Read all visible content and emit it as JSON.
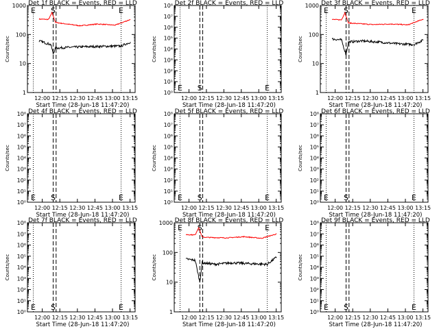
{
  "figure": {
    "xlabel": "Start Time (28-Jun-18 11:47:20)",
    "ylabel": "Counts/sec",
    "x_ticks": [
      "12:00",
      "12:15",
      "12:30",
      "12:45",
      "13:00",
      "13:15"
    ],
    "colors": {
      "events": "#000000",
      "lld": "#ff0000",
      "axes": "#000000"
    }
  },
  "chart_data": [
    {
      "type": "line",
      "title": "Det 1f BLACK = Events, RED = LLD",
      "xlabel": "Start Time (28-Jun-18 11:47:20)",
      "ylabel": "Counts/sec",
      "yscale": "log",
      "ylim": [
        1,
        1000
      ],
      "y_ticks": [
        "1",
        "10",
        "100",
        "1000"
      ],
      "x_ticks": [
        "12:00",
        "12:15",
        "12:30",
        "12:45",
        "13:00",
        "13:15"
      ],
      "markers": [
        {
          "label": "E",
          "minutes": 5
        },
        {
          "label": "S",
          "minutes": 22
        },
        {
          "label": "E",
          "minutes": 80
        }
      ],
      "series": [
        {
          "color": "#ff0000",
          "points": [
            [
              10,
              340
            ],
            [
              18,
              330
            ],
            [
              21,
              560
            ],
            [
              24,
              260
            ],
            [
              30,
              240
            ],
            [
              45,
              200
            ],
            [
              60,
              230
            ],
            [
              75,
              210
            ],
            [
              88,
              330
            ]
          ]
        },
        {
          "color": "#000000",
          "points": [
            [
              10,
              60
            ],
            [
              20,
              45
            ],
            [
              22,
              22
            ],
            [
              24,
              34
            ],
            [
              35,
              36
            ],
            [
              50,
              38
            ],
            [
              65,
              39
            ],
            [
              80,
              40
            ],
            [
              88,
              55
            ]
          ]
        }
      ]
    },
    {
      "type": "line",
      "title": "Det 2f BLACK = Events, RED = LLD",
      "xlabel": "Start Time (28-Jun-18 11:47:20)",
      "ylabel": "Counts/sec",
      "yscale": "log",
      "ylim": [
        1,
        100000000
      ],
      "y_ticks": [
        "10⁰",
        "10¹",
        "10²",
        "10³",
        "10⁴",
        "10⁵",
        "10⁶",
        "10⁷",
        "10⁸"
      ],
      "x_ticks": [
        "12:00",
        "12:15",
        "12:30",
        "12:45",
        "13:00",
        "13:15"
      ],
      "markers": [
        {
          "label": "E",
          "minutes": 5
        },
        {
          "label": "S",
          "minutes": 22
        },
        {
          "label": "E",
          "minutes": 80
        }
      ],
      "series": []
    },
    {
      "type": "line",
      "title": "Det 3f BLACK = Events, RED = LLD",
      "xlabel": "Start Time (28-Jun-18 11:47:20)",
      "ylabel": "Counts/sec",
      "yscale": "log",
      "ylim": [
        1,
        1000
      ],
      "y_ticks": [
        "1",
        "10",
        "100",
        "1000"
      ],
      "x_ticks": [
        "12:00",
        "12:15",
        "12:30",
        "12:45",
        "13:00",
        "13:15"
      ],
      "markers": [
        {
          "label": "E",
          "minutes": 5
        },
        {
          "label": "S",
          "minutes": 22
        },
        {
          "label": "E",
          "minutes": 80
        }
      ],
      "series": [
        {
          "color": "#ff0000",
          "points": [
            [
              10,
              330
            ],
            [
              18,
              320
            ],
            [
              21,
              560
            ],
            [
              24,
              250
            ],
            [
              30,
              240
            ],
            [
              45,
              220
            ],
            [
              60,
              230
            ],
            [
              75,
              215
            ],
            [
              88,
              340
            ]
          ]
        },
        {
          "color": "#000000",
          "points": [
            [
              10,
              70
            ],
            [
              18,
              65
            ],
            [
              22,
              20
            ],
            [
              24,
              55
            ],
            [
              35,
              60
            ],
            [
              50,
              55
            ],
            [
              65,
              48
            ],
            [
              80,
              45
            ],
            [
              88,
              65
            ]
          ]
        }
      ]
    },
    {
      "type": "line",
      "title": "Det 4f BLACK = Events, RED = LLD",
      "xlabel": "Start Time (28-Jun-18 11:47:20)",
      "ylabel": "Counts/sec",
      "yscale": "log",
      "ylim": [
        1,
        100000000
      ],
      "y_ticks": [
        "10⁰",
        "10¹",
        "10²",
        "10³",
        "10⁴",
        "10⁵",
        "10⁶",
        "10⁷",
        "10⁸"
      ],
      "x_ticks": [
        "12:00",
        "12:15",
        "12:30",
        "12:45",
        "13:00",
        "13:15"
      ],
      "markers": [
        {
          "label": "E",
          "minutes": 5
        },
        {
          "label": "S",
          "minutes": 22
        },
        {
          "label": "E",
          "minutes": 80
        }
      ],
      "series": []
    },
    {
      "type": "line",
      "title": "Det 5f BLACK = Events, RED = LLD",
      "xlabel": "Start Time (28-Jun-18 11:47:20)",
      "ylabel": "Counts/sec",
      "yscale": "log",
      "ylim": [
        1,
        100000000
      ],
      "y_ticks": [
        "10⁰",
        "10¹",
        "10²",
        "10³",
        "10⁴",
        "10⁵",
        "10⁶",
        "10⁷",
        "10⁸"
      ],
      "x_ticks": [
        "12:00",
        "12:15",
        "12:30",
        "12:45",
        "13:00",
        "13:15"
      ],
      "markers": [
        {
          "label": "E",
          "minutes": 5
        },
        {
          "label": "S",
          "minutes": 22
        },
        {
          "label": "E",
          "minutes": 80
        }
      ],
      "series": []
    },
    {
      "type": "line",
      "title": "Det 6f BLACK = Events, RED = LLD",
      "xlabel": "Start Time (28-Jun-18 11:47:20)",
      "ylabel": "Counts/sec",
      "yscale": "log",
      "ylim": [
        1,
        100000000
      ],
      "y_ticks": [
        "10⁰",
        "10¹",
        "10²",
        "10³",
        "10⁴",
        "10⁵",
        "10⁶",
        "10⁷",
        "10⁸"
      ],
      "x_ticks": [
        "12:00",
        "12:15",
        "12:30",
        "12:45",
        "13:00",
        "13:15"
      ],
      "markers": [
        {
          "label": "E",
          "minutes": 5
        },
        {
          "label": "S",
          "minutes": 22
        },
        {
          "label": "E",
          "minutes": 80
        }
      ],
      "series": []
    },
    {
      "type": "line",
      "title": "Det 7f BLACK = Events, RED = LLD",
      "xlabel": "Start Time (28-Jun-18 11:47:20)",
      "ylabel": "Counts/sec",
      "yscale": "log",
      "ylim": [
        1,
        100000000
      ],
      "y_ticks": [
        "10⁰",
        "10¹",
        "10²",
        "10³",
        "10⁴",
        "10⁵",
        "10⁶",
        "10⁷",
        "10⁸"
      ],
      "x_ticks": [
        "12:00",
        "12:15",
        "12:30",
        "12:45",
        "13:00",
        "13:15"
      ],
      "markers": [
        {
          "label": "E",
          "minutes": 5
        },
        {
          "label": "S",
          "minutes": 22
        },
        {
          "label": "E",
          "minutes": 80
        }
      ],
      "series": []
    },
    {
      "type": "line",
      "title": "Det 8f BLACK = Events, RED = LLD",
      "xlabel": "Start Time (28-Jun-18 11:47:20)",
      "ylabel": "Counts/sec",
      "yscale": "log",
      "ylim": [
        1,
        1000
      ],
      "y_ticks": [
        "1",
        "10",
        "100",
        "1000"
      ],
      "x_ticks": [
        "12:00",
        "12:15",
        "12:30",
        "12:45",
        "13:00",
        "13:15"
      ],
      "markers": [
        {
          "label": "E",
          "minutes": 5
        },
        {
          "label": "S",
          "minutes": 22
        },
        {
          "label": "E",
          "minutes": 80
        }
      ],
      "series": [
        {
          "color": "#ff0000",
          "points": [
            [
              10,
              400
            ],
            [
              18,
              390
            ],
            [
              21,
              700
            ],
            [
              24,
              330
            ],
            [
              30,
              320
            ],
            [
              45,
              310
            ],
            [
              60,
              340
            ],
            [
              75,
              300
            ],
            [
              88,
              420
            ]
          ]
        },
        {
          "color": "#000000",
          "points": [
            [
              10,
              60
            ],
            [
              18,
              55
            ],
            [
              22,
              10
            ],
            [
              24,
              45
            ],
            [
              35,
              40
            ],
            [
              50,
              45
            ],
            [
              65,
              42
            ],
            [
              80,
              40
            ],
            [
              88,
              70
            ]
          ]
        }
      ]
    },
    {
      "type": "line",
      "title": "Det 9f BLACK = Events, RED = LLD",
      "xlabel": "Start Time (28-Jun-18 11:47:20)",
      "ylabel": "Counts/sec",
      "yscale": "log",
      "ylim": [
        1,
        100000000
      ],
      "y_ticks": [
        "10⁰",
        "10¹",
        "10²",
        "10³",
        "10⁴",
        "10⁵",
        "10⁶",
        "10⁷",
        "10⁸"
      ],
      "x_ticks": [
        "12:00",
        "12:15",
        "12:30",
        "12:45",
        "13:00",
        "13:15"
      ],
      "markers": [
        {
          "label": "E",
          "minutes": 5
        },
        {
          "label": "S",
          "minutes": 22
        },
        {
          "label": "E",
          "minutes": 80
        }
      ],
      "series": []
    }
  ]
}
